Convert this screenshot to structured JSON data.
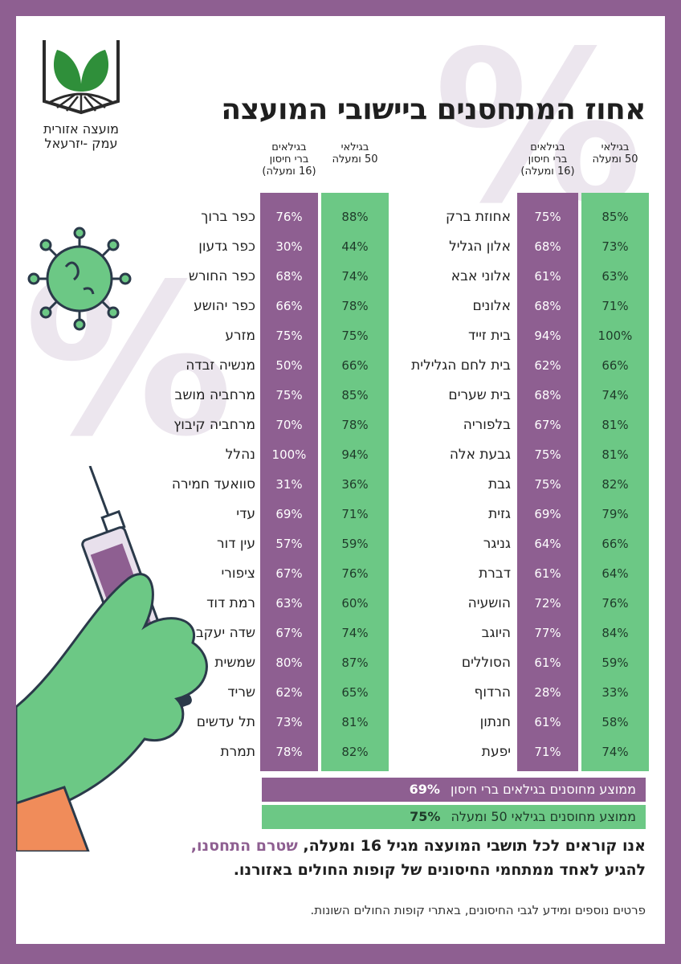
{
  "logo": {
    "line1": "מועצה אזורית",
    "line2": "עמק -יזרעאל"
  },
  "title": "אחוז המתחסנים ביישובי המועצה",
  "headers": {
    "age50": [
      "בגילאי",
      "50 ומעלה"
    ],
    "eligible": [
      "בגילאים",
      "ברי חיסון",
      "(16 ומעלה)"
    ]
  },
  "colors": {
    "purple": "#8e5f91",
    "green": "#6cc885"
  },
  "right_table": [
    {
      "name": "אחוזת ברק",
      "age50": "85%",
      "eligible": "75%"
    },
    {
      "name": "אלון הגליל",
      "age50": "73%",
      "eligible": "68%"
    },
    {
      "name": "אלוני אבא",
      "age50": "63%",
      "eligible": "61%"
    },
    {
      "name": "אלונים",
      "age50": "71%",
      "eligible": "68%"
    },
    {
      "name": "בית זייד",
      "age50": "100%",
      "eligible": "94%"
    },
    {
      "name": "בית לחם הגלילית",
      "age50": "66%",
      "eligible": "62%"
    },
    {
      "name": "בית שערים",
      "age50": "74%",
      "eligible": "68%"
    },
    {
      "name": "בלפוריה",
      "age50": "81%",
      "eligible": "67%"
    },
    {
      "name": "גבעת אלה",
      "age50": "81%",
      "eligible": "75%"
    },
    {
      "name": "גבת",
      "age50": "82%",
      "eligible": "75%"
    },
    {
      "name": "גזית",
      "age50": "79%",
      "eligible": "69%"
    },
    {
      "name": "גניגר",
      "age50": "66%",
      "eligible": "64%"
    },
    {
      "name": "דברת",
      "age50": "64%",
      "eligible": "61%"
    },
    {
      "name": "הושעיה",
      "age50": "76%",
      "eligible": "72%"
    },
    {
      "name": "היוגב",
      "age50": "84%",
      "eligible": "77%"
    },
    {
      "name": "הסוללים",
      "age50": "59%",
      "eligible": "61%"
    },
    {
      "name": "הרדוף",
      "age50": "33%",
      "eligible": "28%"
    },
    {
      "name": "חנתון",
      "age50": "58%",
      "eligible": "61%"
    },
    {
      "name": "יפעת",
      "age50": "74%",
      "eligible": "71%"
    }
  ],
  "left_table": [
    {
      "name": "כפר ברוך",
      "age50": "88%",
      "eligible": "76%"
    },
    {
      "name": "כפר גדעון",
      "age50": "44%",
      "eligible": "30%"
    },
    {
      "name": "כפר החורש",
      "age50": "74%",
      "eligible": "68%"
    },
    {
      "name": "כפר יהושע",
      "age50": "78%",
      "eligible": "66%"
    },
    {
      "name": "מזרע",
      "age50": "75%",
      "eligible": "75%"
    },
    {
      "name": "מנשיה זבדה",
      "age50": "66%",
      "eligible": "50%"
    },
    {
      "name": "מרחביה מושב",
      "age50": "85%",
      "eligible": "75%"
    },
    {
      "name": "מרחביה קיבוץ",
      "age50": "78%",
      "eligible": "70%"
    },
    {
      "name": "נהלל",
      "age50": "94%",
      "eligible": "100%"
    },
    {
      "name": "סוואעד חמירה",
      "age50": "36%",
      "eligible": "31%"
    },
    {
      "name": "עדי",
      "age50": "71%",
      "eligible": "69%"
    },
    {
      "name": "עין דור",
      "age50": "59%",
      "eligible": "57%"
    },
    {
      "name": "ציפורי",
      "age50": "76%",
      "eligible": "67%"
    },
    {
      "name": "רמת דוד",
      "age50": "60%",
      "eligible": "63%"
    },
    {
      "name": "שדה יעקב",
      "age50": "74%",
      "eligible": "67%"
    },
    {
      "name": "שמשית",
      "age50": "87%",
      "eligible": "80%"
    },
    {
      "name": "שריד",
      "age50": "65%",
      "eligible": "62%"
    },
    {
      "name": "תל עדשים",
      "age50": "81%",
      "eligible": "73%"
    },
    {
      "name": "תמרת",
      "age50": "82%",
      "eligible": "78%"
    }
  ],
  "averages": {
    "eligible_label": "ממוצע מחוסנים בגילאים ברי חיסון",
    "eligible_value": "69%",
    "age50_label": "ממוצע מחוסנים בגילאי 50 ומעלה",
    "age50_value": "75%"
  },
  "cta": {
    "part1": "אנו קוראים לכל תושבי המועצה מגיל 16 ומעלה, ",
    "highlight": "שטרם התחסנו,",
    "part2": "להגיע לאחד ממתחמי החיסונים של קופות החולים באזורנו."
  },
  "footer": "פרטים נוספים ומידע לגבי החיסונים, באתרי קופות החולים השונות.",
  "background_symbol": "%"
}
